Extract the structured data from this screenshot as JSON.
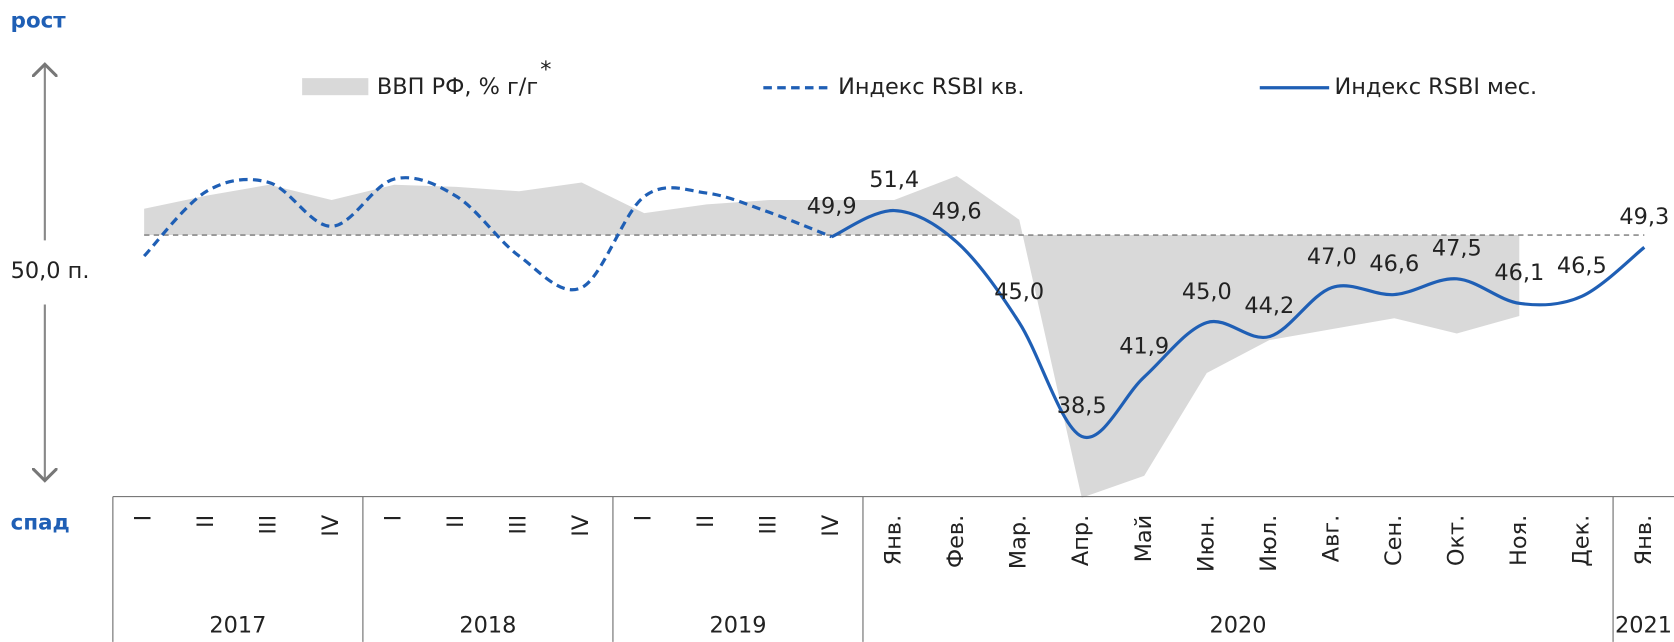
{
  "chart_data": {
    "type": "line",
    "top_label": "рост",
    "bottom_label": "спад",
    "reference": {
      "value": 50,
      "label": "50,0 п."
    },
    "year_groups": [
      {
        "label": "2017",
        "categories": [
          "I",
          "II",
          "III",
          "IV"
        ]
      },
      {
        "label": "2018",
        "categories": [
          "I",
          "II",
          "III",
          "IV"
        ]
      },
      {
        "label": "2019",
        "categories": [
          "I",
          "II",
          "III",
          "IV"
        ]
      },
      {
        "label": "2020",
        "categories": [
          "Янв.",
          "Фев.",
          "Мар.",
          "Апр.",
          "Май",
          "Июн.",
          "Июл.",
          "Авг.",
          "Сен.",
          "Окт.",
          "Ноя.",
          "Дек."
        ]
      },
      {
        "label": "2021",
        "categories": [
          "Янв."
        ]
      }
    ],
    "ylim": [
      35,
      60
    ],
    "y2lim": [
      -12,
      8
    ],
    "series": [
      {
        "name": "ВВП РФ, % г/г",
        "footnote_mark": "*",
        "kind": "area",
        "axis": "y2",
        "color": "#d9d9d9",
        "values": [
          1.2,
          1.8,
          2.3,
          1.6,
          2.3,
          2.2,
          2.0,
          2.4,
          1.0,
          1.4,
          1.6,
          1.6,
          1.6,
          2.7,
          0.7,
          -12.0,
          -11.0,
          -6.3,
          -4.8,
          -4.3,
          -3.8,
          -4.5,
          -3.7,
          null,
          null
        ]
      },
      {
        "name": "Индекс RSBI кв.",
        "kind": "dashed",
        "color": "#1f5fb5",
        "values": [
          48.8,
          52.5,
          53.0,
          50.5,
          53.2,
          52.2,
          48.8,
          47.0,
          52.2,
          52.4,
          51.3,
          49.9,
          null,
          null,
          null,
          null,
          null,
          null,
          null,
          null,
          null,
          null,
          null,
          null,
          null
        ]
      },
      {
        "name": "Индекс RSBI мес.",
        "kind": "solid",
        "color": "#1f5fb5",
        "values": [
          null,
          null,
          null,
          null,
          null,
          null,
          null,
          null,
          null,
          null,
          null,
          49.9,
          51.4,
          49.6,
          45.0,
          38.5,
          41.9,
          45.0,
          44.2,
          47.0,
          46.6,
          47.5,
          46.1,
          46.5,
          49.3
        ],
        "value_labels": [
          null,
          null,
          null,
          null,
          null,
          null,
          null,
          null,
          null,
          null,
          null,
          "49,9",
          "51,4",
          "49,6",
          "45,0",
          "38,5",
          "41,9",
          "45,0",
          "44,2",
          "47,0",
          "46,6",
          "47,5",
          "46,1",
          "46,5",
          "49,3"
        ]
      }
    ]
  }
}
